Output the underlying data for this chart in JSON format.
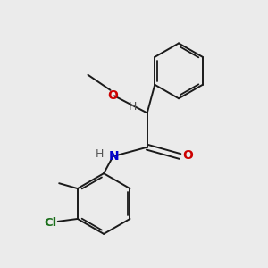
{
  "background_color": "#ebebeb",
  "bond_color": "#1a1a1a",
  "atom_colors": {
    "O": "#cc0000",
    "N": "#0000cc",
    "Cl": "#1a6e1a",
    "H": "#555555"
  },
  "figsize": [
    3.0,
    3.0
  ],
  "dpi": 100
}
